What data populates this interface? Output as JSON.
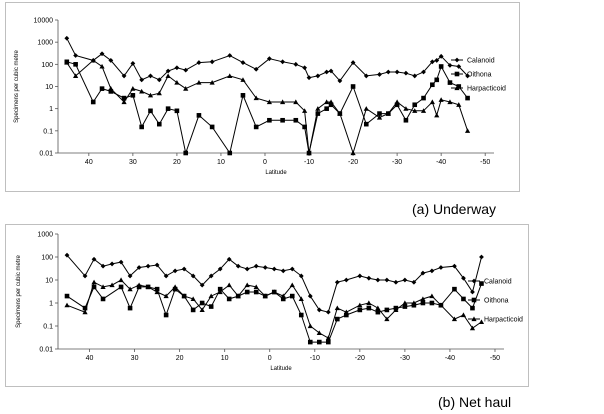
{
  "chart_data": [
    {
      "type": "line",
      "caption": "(a) Underway",
      "xlabel": "Latitude",
      "ylabel": "Specimens per cubic metre",
      "x_reversed": true,
      "xlim": [
        47,
        -52
      ],
      "y_scale": "log",
      "ylim": [
        0.01,
        10000
      ],
      "x_ticks": [
        40,
        30,
        20,
        10,
        0,
        -10,
        -20,
        -30,
        -40,
        -50
      ],
      "y_ticks": [
        "0.01",
        "0.1",
        "1",
        "10",
        "100",
        "1000",
        "10000"
      ],
      "grid": false,
      "legend": "right",
      "series": [
        {
          "name": "Calanoid",
          "marker": "diamond",
          "points": [
            [
              45,
              1500
            ],
            [
              43,
              250
            ],
            [
              39,
              150
            ],
            [
              37,
              300
            ],
            [
              35,
              150
            ],
            [
              32,
              30
            ],
            [
              30,
              110
            ],
            [
              28,
              20
            ],
            [
              26,
              30
            ],
            [
              24,
              20
            ],
            [
              22,
              50
            ],
            [
              20,
              70
            ],
            [
              18,
              55
            ],
            [
              15,
              120
            ],
            [
              12,
              130
            ],
            [
              8,
              250
            ],
            [
              5,
              120
            ],
            [
              2,
              60
            ],
            [
              -1,
              180
            ],
            [
              -4,
              130
            ],
            [
              -7,
              100
            ],
            [
              -9,
              70
            ],
            [
              -10,
              25
            ],
            [
              -12,
              30
            ],
            [
              -14,
              45
            ],
            [
              -15,
              50
            ],
            [
              -17,
              18
            ],
            [
              -20,
              120
            ],
            [
              -23,
              30
            ],
            [
              -26,
              35
            ],
            [
              -28,
              45
            ],
            [
              -30,
              45
            ],
            [
              -32,
              40
            ],
            [
              -34,
              30
            ],
            [
              -36,
              45
            ],
            [
              -38,
              130
            ],
            [
              -39,
              150
            ],
            [
              -40,
              230
            ],
            [
              -42,
              90
            ],
            [
              -44,
              80
            ],
            [
              -46,
              30
            ]
          ]
        },
        {
          "name": "Oithona",
          "marker": "square",
          "points": [
            [
              45,
              130
            ],
            [
              43,
              100
            ],
            [
              39,
              2
            ],
            [
              37,
              8
            ],
            [
              35,
              6
            ],
            [
              32,
              3
            ],
            [
              30,
              4
            ],
            [
              28,
              0.15
            ],
            [
              26,
              0.8
            ],
            [
              24,
              0.2
            ],
            [
              22,
              1
            ],
            [
              20,
              0.8
            ],
            [
              18,
              0.01
            ],
            [
              15,
              0.5
            ],
            [
              12,
              0.15
            ],
            [
              8,
              0.01
            ],
            [
              5,
              4
            ],
            [
              2,
              0.15
            ],
            [
              -1,
              0.3
            ],
            [
              -4,
              0.3
            ],
            [
              -7,
              0.3
            ],
            [
              -9,
              0.15
            ],
            [
              -10,
              0.01
            ],
            [
              -12,
              0.6
            ],
            [
              -14,
              1
            ],
            [
              -15,
              1.5
            ],
            [
              -17,
              0.6
            ],
            [
              -20,
              10
            ],
            [
              -23,
              0.2
            ],
            [
              -26,
              0.6
            ],
            [
              -28,
              0.6
            ],
            [
              -30,
              1.5
            ],
            [
              -32,
              0.3
            ],
            [
              -34,
              1.5
            ],
            [
              -36,
              3
            ],
            [
              -38,
              12
            ],
            [
              -39,
              20
            ],
            [
              -40,
              80
            ],
            [
              -42,
              15
            ],
            [
              -44,
              10
            ],
            [
              -46,
              3
            ]
          ]
        },
        {
          "name": "Harpacticoid",
          "marker": "triangle",
          "points": [
            [
              45,
              120
            ],
            [
              43,
              30
            ],
            [
              39,
              150
            ],
            [
              37,
              80
            ],
            [
              35,
              8
            ],
            [
              32,
              2
            ],
            [
              30,
              8
            ],
            [
              28,
              6
            ],
            [
              26,
              4
            ],
            [
              24,
              5
            ],
            [
              22,
              30
            ],
            [
              20,
              15
            ],
            [
              18,
              8
            ],
            [
              15,
              15
            ],
            [
              12,
              15
            ],
            [
              8,
              30
            ],
            [
              5,
              20
            ],
            [
              2,
              3
            ],
            [
              -1,
              2
            ],
            [
              -4,
              2
            ],
            [
              -7,
              2
            ],
            [
              -9,
              0.8
            ],
            [
              -10,
              0.01
            ],
            [
              -12,
              1
            ],
            [
              -14,
              2
            ],
            [
              -15,
              2
            ],
            [
              -17,
              0.6
            ],
            [
              -20,
              0.01
            ],
            [
              -23,
              1
            ],
            [
              -26,
              0.4
            ],
            [
              -28,
              0.6
            ],
            [
              -30,
              2
            ],
            [
              -32,
              1
            ],
            [
              -34,
              0.8
            ],
            [
              -36,
              0.8
            ],
            [
              -38,
              2
            ],
            [
              -39,
              0.5
            ],
            [
              -40,
              2.5
            ],
            [
              -42,
              2
            ],
            [
              -44,
              1.5
            ],
            [
              -46,
              0.1
            ]
          ]
        }
      ]
    },
    {
      "type": "line",
      "caption": "(b) Net haul",
      "xlabel": "Latitude",
      "ylabel": "Specimens per cubic metre",
      "x_reversed": true,
      "xlim": [
        47,
        -52
      ],
      "y_scale": "log",
      "ylim": [
        0.01,
        1000
      ],
      "x_ticks": [
        40,
        30,
        20,
        10,
        0,
        -10,
        -20,
        -30,
        -40,
        -50
      ],
      "y_ticks": [
        "0.01",
        "0.1",
        "1",
        "10",
        "100",
        "1000"
      ],
      "grid": false,
      "legend": "right",
      "series": [
        {
          "name": "Calanoid",
          "marker": "diamond",
          "points": [
            [
              45,
              120
            ],
            [
              41,
              15
            ],
            [
              39,
              80
            ],
            [
              37,
              40
            ],
            [
              35,
              50
            ],
            [
              33,
              60
            ],
            [
              31,
              15
            ],
            [
              29,
              35
            ],
            [
              27,
              40
            ],
            [
              25,
              45
            ],
            [
              23,
              15
            ],
            [
              21,
              25
            ],
            [
              19,
              30
            ],
            [
              17,
              15
            ],
            [
              15,
              6
            ],
            [
              13,
              15
            ],
            [
              11,
              30
            ],
            [
              9,
              80
            ],
            [
              7,
              40
            ],
            [
              5,
              30
            ],
            [
              3,
              40
            ],
            [
              1,
              35
            ],
            [
              -1,
              30
            ],
            [
              -3,
              25
            ],
            [
              -5,
              30
            ],
            [
              -7,
              15
            ],
            [
              -9,
              2
            ],
            [
              -11,
              0.5
            ],
            [
              -13,
              0.4
            ],
            [
              -15,
              8
            ],
            [
              -17,
              10
            ],
            [
              -20,
              15
            ],
            [
              -22,
              12
            ],
            [
              -24,
              10
            ],
            [
              -26,
              10
            ],
            [
              -28,
              8
            ],
            [
              -30,
              10
            ],
            [
              -32,
              8
            ],
            [
              -34,
              20
            ],
            [
              -36,
              25
            ],
            [
              -38,
              35
            ],
            [
              -41,
              40
            ],
            [
              -43,
              12
            ],
            [
              -45,
              3
            ],
            [
              -47,
              100
            ]
          ]
        },
        {
          "name": "Oithona",
          "marker": "square",
          "points": [
            [
              45,
              2
            ],
            [
              41,
              0.6
            ],
            [
              39,
              5
            ],
            [
              37,
              1.5
            ],
            [
              33,
              5
            ],
            [
              31,
              0.6
            ],
            [
              29,
              5
            ],
            [
              27,
              5
            ],
            [
              25,
              4
            ],
            [
              23,
              0.3
            ],
            [
              21,
              4
            ],
            [
              19,
              2
            ],
            [
              17,
              0.5
            ],
            [
              15,
              1
            ],
            [
              13,
              0.7
            ],
            [
              11,
              4
            ],
            [
              9,
              1.5
            ],
            [
              7,
              2
            ],
            [
              5,
              3
            ],
            [
              3,
              3
            ],
            [
              1,
              2
            ],
            [
              -1,
              3
            ],
            [
              -3,
              1.5
            ],
            [
              -5,
              2
            ],
            [
              -7,
              0.3
            ],
            [
              -9,
              0.02
            ],
            [
              -11,
              0.02
            ],
            [
              -13,
              0.02
            ],
            [
              -15,
              0.2
            ],
            [
              -17,
              0.3
            ],
            [
              -20,
              0.5
            ],
            [
              -22,
              0.6
            ],
            [
              -24,
              0.4
            ],
            [
              -26,
              0.5
            ],
            [
              -28,
              0.6
            ],
            [
              -30,
              0.7
            ],
            [
              -32,
              0.8
            ],
            [
              -34,
              1
            ],
            [
              -36,
              1
            ],
            [
              -38,
              0.8
            ],
            [
              -41,
              4
            ],
            [
              -43,
              1.5
            ],
            [
              -45,
              0.6
            ],
            [
              -47,
              7
            ]
          ]
        },
        {
          "name": "Harpacticoid",
          "marker": "triangle",
          "points": [
            [
              45,
              0.8
            ],
            [
              41,
              0.4
            ],
            [
              39,
              8
            ],
            [
              37,
              5
            ],
            [
              35,
              6
            ],
            [
              33,
              10
            ],
            [
              31,
              4
            ],
            [
              29,
              6
            ],
            [
              27,
              5
            ],
            [
              25,
              3
            ],
            [
              23,
              2
            ],
            [
              21,
              5
            ],
            [
              19,
              2
            ],
            [
              17,
              1.5
            ],
            [
              15,
              0.5
            ],
            [
              13,
              2
            ],
            [
              11,
              3
            ],
            [
              9,
              6
            ],
            [
              7,
              2
            ],
            [
              5,
              6
            ],
            [
              3,
              5
            ],
            [
              1,
              2
            ],
            [
              -1,
              3
            ],
            [
              -3,
              2
            ],
            [
              -5,
              6
            ],
            [
              -7,
              1.5
            ],
            [
              -9,
              0.1
            ],
            [
              -11,
              0.05
            ],
            [
              -13,
              0.03
            ],
            [
              -15,
              0.6
            ],
            [
              -17,
              0.4
            ],
            [
              -20,
              0.8
            ],
            [
              -22,
              1
            ],
            [
              -24,
              0.6
            ],
            [
              -26,
              0.2
            ],
            [
              -28,
              0.5
            ],
            [
              -30,
              1
            ],
            [
              -32,
              1
            ],
            [
              -34,
              1.5
            ],
            [
              -36,
              2
            ],
            [
              -38,
              0.8
            ],
            [
              -41,
              0.2
            ],
            [
              -43,
              0.3
            ],
            [
              -45,
              0.08
            ],
            [
              -47,
              0.15
            ]
          ]
        }
      ]
    }
  ]
}
